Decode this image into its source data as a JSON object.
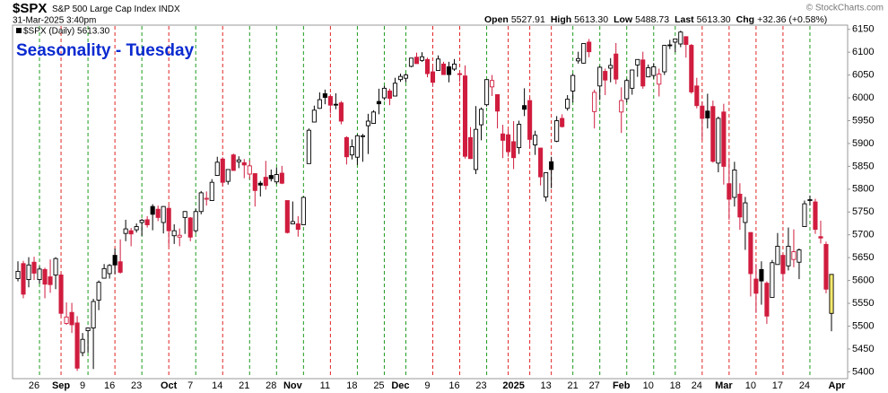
{
  "header": {
    "symbol": "$SPX",
    "name": "S&P 500 Large Cap Index",
    "exchange": "INDX",
    "date": "31-Mar-2025 3:40pm",
    "quote": [
      {
        "label": "Open",
        "value": "5527.91"
      },
      {
        "label": "High",
        "value": "5613.30"
      },
      {
        "label": "Low",
        "value": "5488.73"
      },
      {
        "label": "Last",
        "value": "5613.30"
      },
      {
        "label": "Chg",
        "value": "+32.36 (+0.58%)"
      }
    ],
    "copyright": "© StockCharts.com"
  },
  "chart_data": {
    "type": "candlestick",
    "title": "Seasonality - Tuesday",
    "legend": "$SPX (Daily) 5613.30",
    "up_color": "#000000",
    "down_color": "#d01c3e",
    "highlight_color": "#f6ea6e",
    "marker_up_color": "#1e9b1e",
    "marker_down_color": "#e02424",
    "ylim": [
      5385,
      6175
    ],
    "yticks": [
      5400,
      5450,
      5500,
      5550,
      5600,
      5650,
      5700,
      5750,
      5800,
      5850,
      5900,
      5950,
      6000,
      6050,
      6100,
      6150
    ],
    "categories": [
      null,
      null,
      null,
      "26",
      null,
      null,
      null,
      null,
      "Sep",
      null,
      null,
      null,
      "9",
      null,
      null,
      null,
      null,
      "16",
      null,
      null,
      null,
      null,
      "23",
      null,
      null,
      null,
      null,
      null,
      "Oct",
      null,
      null,
      null,
      "7",
      null,
      null,
      null,
      null,
      "14",
      null,
      null,
      null,
      null,
      "21",
      null,
      null,
      null,
      null,
      "28",
      null,
      null,
      null,
      "Nov",
      null,
      null,
      null,
      null,
      null,
      "11",
      null,
      null,
      null,
      null,
      "18",
      null,
      null,
      null,
      null,
      "25",
      null,
      null,
      null,
      "Dec",
      null,
      null,
      null,
      null,
      "9",
      null,
      null,
      null,
      null,
      "16",
      null,
      null,
      null,
      null,
      "23",
      null,
      null,
      null,
      null,
      null,
      "2025",
      null,
      null,
      null,
      null,
      null,
      "13",
      null,
      null,
      null,
      null,
      "21",
      null,
      null,
      null,
      "27",
      null,
      null,
      null,
      null,
      "Feb",
      null,
      null,
      null,
      null,
      "10",
      null,
      null,
      null,
      null,
      "18",
      null,
      null,
      null,
      "24",
      null,
      null,
      null,
      null,
      "Mar",
      null,
      null,
      null,
      null,
      "10",
      null,
      null,
      null,
      null,
      "17",
      null,
      null,
      null,
      null,
      "24",
      null,
      null,
      null,
      null,
      null,
      "Apr"
    ],
    "tuesdays": [
      4,
      8,
      13,
      18,
      23,
      28,
      33,
      38,
      43,
      48,
      53,
      58,
      63,
      68,
      72,
      77,
      82,
      87,
      91,
      95,
      99,
      103,
      108,
      113,
      118,
      122,
      127,
      132,
      137,
      142,
      147
    ],
    "open": [
      5604,
      5637,
      5602,
      5640,
      5602,
      5624,
      5608,
      5612,
      5612,
      5506,
      5530,
      5507,
      5442,
      5490,
      5496,
      5557,
      5605,
      5615,
      5655,
      5641,
      5703,
      5709,
      5711,
      5727,
      5733,
      5762,
      5756,
      5727,
      5758,
      5698,
      5695,
      5738,
      5737,
      5709,
      5751,
      5778,
      5775,
      5830,
      5866,
      5817,
      5875,
      5860,
      5858,
      5833,
      5834,
      5813,
      5826,
      5830,
      5816,
      5835,
      5775,
      5724,
      5724,
      5722,
      5856,
      5947,
      5977,
      6009,
      6003,
      5986,
      5989,
      5913,
      5875,
      5870,
      5917,
      5939,
      5944,
      5992,
      6000,
      6015,
      6004,
      6040,
      6043,
      6069,
      6089,
      6082,
      6084,
      6057,
      6060,
      6074,
      6068,
      6063,
      6053,
      6048,
      5913,
      5843,
      5941,
      5985,
      6024,
      6007,
      5921,
      5919,
      5904,
      5891,
      5983,
      5994,
      5897,
      5890,
      5783,
      5860,
      5905,
      5955,
      5977,
      6015,
      6081,
      6076,
      6122,
      5970,
      6026,
      6058,
      6065,
      6096,
      5969,
      5998,
      6021,
      6072,
      6083,
      6046,
      6049,
      6030,
      6057,
      6116,
      6122,
      6118,
      6134,
      6115,
      6026,
      5982,
      5971,
      5981,
      5857,
      5969,
      5812,
      5782,
      5789,
      5727,
      5705,
      5603,
      5624,
      5594,
      5563,
      5635,
      5655,
      5632,
      5646,
      5640,
      5718,
      5775,
      5772,
      5696,
      5679,
      5527.91,
      null
    ],
    "high": [
      5642,
      5643,
      5651,
      5652,
      5631,
      5628,
      5646,
      5651,
      5617,
      5552,
      5551,
      5522,
      5485,
      5497,
      5560,
      5600,
      5636,
      5636,
      5670,
      5690,
      5733,
      5715,
      5725,
      5735,
      5741,
      5767,
      5764,
      5763,
      5765,
      5723,
      5714,
      5752,
      5739,
      5757,
      5796,
      5795,
      5822,
      5871,
      5870,
      5843,
      5878,
      5872,
      5866,
      5863,
      5835,
      5818,
      5862,
      5843,
      5847,
      5851,
      5775,
      5773,
      5741,
      5784,
      5933,
      5983,
      6012,
      6018,
      6008,
      6010,
      5993,
      5916,
      5909,
      5920,
      5921,
      5965,
      5973,
      6020,
      6026,
      6020,
      6044,
      6053,
      6053,
      6087,
      6099,
      6100,
      6088,
      6068,
      6093,
      6079,
      6079,
      6085,
      6057,
      6071,
      5936,
      5982,
      5979,
      6041,
      6050,
      6007,
      5941,
      5930,
      5949,
      5950,
      6021,
      6001,
      5928,
      5890,
      5836,
      5871,
      5960,
      5964,
      6006,
      6053,
      6101,
      6119,
      6129,
      6018,
      6070,
      6064,
      6087,
      6120,
      6023,
      6042,
      6062,
      6084,
      6101,
      6073,
      6076,
      6064,
      6116,
      6127,
      6129,
      6147,
      6135,
      6118,
      6044,
      5992,
      6009,
      5994,
      5959,
      5987,
      5866,
      5860,
      5813,
      5783,
      5706,
      5636,
      5642,
      5598,
      5645,
      5704,
      5658,
      5716,
      5712,
      5670,
      5775,
      5786,
      5779,
      5731,
      5685,
      5613.3,
      null
    ],
    "low": [
      5598,
      5561,
      5585,
      5601,
      5593,
      5561,
      5573,
      5581,
      5521,
      5503,
      5485,
      5402,
      5434,
      5442,
      5406,
      5535,
      5604,
      5604,
      5614,
      5615,
      5686,
      5675,
      5705,
      5698,
      5716,
      5710,
      5730,
      5703,
      5675,
      5680,
      5675,
      5702,
      5686,
      5704,
      5745,
      5764,
      5775,
      5829,
      5806,
      5810,
      5840,
      5846,
      5824,
      5822,
      5762,
      5784,
      5799,
      5817,
      5811,
      5811,
      5703,
      5723,
      5696,
      5722,
      5856,
      5946,
      5976,
      5986,
      5966,
      5975,
      5942,
      5854,
      5865,
      5853,
      5860,
      5877,
      5945,
      5964,
      5995,
      5984,
      6003,
      6035,
      6034,
      6067,
      6075,
      6079,
      6045,
      6024,
      6060,
      6051,
      6034,
      6059,
      6035,
      5867,
      5866,
      5833,
      5907,
      5981,
      6004,
      5933,
      5868,
      5871,
      5844,
      5877,
      5960,
      5890,
      5875,
      5808,
      5773,
      5802,
      5903,
      5935,
      5972,
      5990,
      6075,
      6075,
      6089,
      5933,
      5995,
      6006,
      6034,
      6030,
      5923,
      5990,
      6007,
      6046,
      6020,
      6045,
      6042,
      6003,
      6050,
      6107,
      6100,
      6111,
      6088,
      6009,
      5977,
      5908,
      5933,
      5858,
      5837,
      5810,
      5733,
      5762,
      5711,
      5667,
      5565,
      5529,
      5547,
      5505,
      5563,
      5635,
      5598,
      5622,
      5629,
      5603,
      5718,
      5764,
      5702,
      5681,
      5572,
      5488.73,
      null
    ],
    "close": [
      5620,
      5570,
      5634,
      5616,
      5625,
      5592,
      5591,
      5648,
      5528,
      5520,
      5503,
      5408,
      5471,
      5496,
      5554,
      5596,
      5626,
      5633,
      5634,
      5618,
      5713,
      5702,
      5718,
      5732,
      5722,
      5745,
      5738,
      5762,
      5709,
      5709,
      5699,
      5751,
      5695,
      5751,
      5792,
      5780,
      5815,
      5859,
      5815,
      5843,
      5841,
      5864,
      5853,
      5851,
      5797,
      5809,
      5808,
      5823,
      5832,
      5813,
      5705,
      5729,
      5712,
      5782,
      5929,
      5973,
      5996,
      6001,
      5984,
      5985,
      5949,
      5871,
      5893,
      5917,
      5917,
      5949,
      5969,
      5987,
      6021,
      5999,
      6032,
      6047,
      6050,
      6087,
      6075,
      6090,
      6053,
      6034,
      6085,
      6051,
      6051,
      6074,
      6051,
      5872,
      5867,
      5931,
      5975,
      6040,
      6038,
      5971,
      5907,
      5882,
      5869,
      5942,
      5975,
      5909,
      5918,
      5827,
      5836,
      5843,
      5950,
      5937,
      5997,
      6049,
      6086,
      6119,
      6101,
      6012,
      6067,
      6039,
      6071,
      6041,
      5994,
      6038,
      6061,
      6084,
      6026,
      6066,
      6068,
      6052,
      6115,
      6115,
      6129,
      6144,
      6117,
      6013,
      5983,
      5955,
      5956,
      5861,
      5955,
      5850,
      5778,
      5842,
      5739,
      5770,
      5615,
      5572,
      5599,
      5522,
      5639,
      5675,
      5615,
      5675,
      5663,
      5667,
      5768,
      5777,
      5712,
      5693,
      5581,
      5613.3,
      null
    ]
  }
}
